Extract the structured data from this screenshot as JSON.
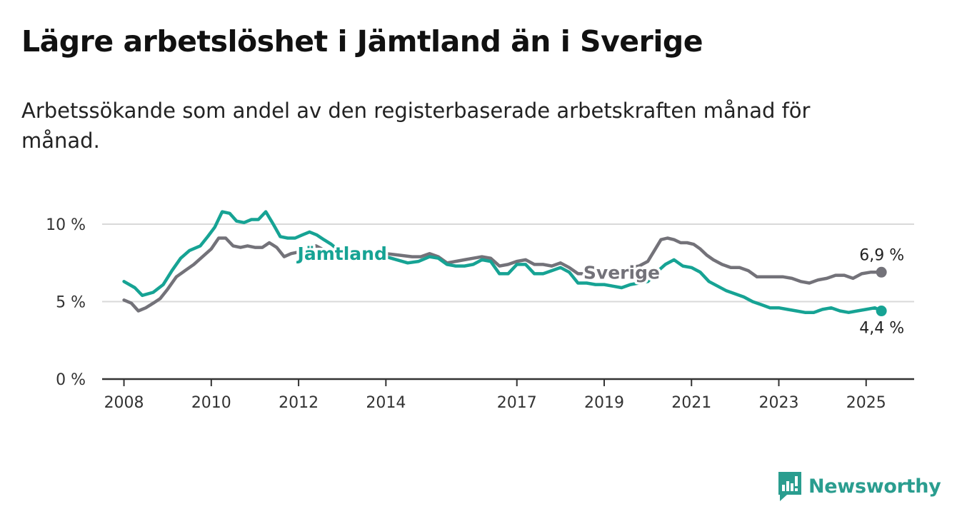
{
  "title": "Lägre arbetslöshet i Jämtland än i Sverige",
  "subtitle": "Arbetssökande som andel av den registerbaserade arbetskraften månad för månad.",
  "brand": {
    "name": "Newsworthy",
    "logo_icon": "newsworthy-bar-chart-icon"
  },
  "colors": {
    "jamtland": "#16a394",
    "sverige": "#737279",
    "grid": "#d9d9d9",
    "axis": "#333333"
  },
  "chart_data": {
    "type": "line",
    "title": "Lägre arbetslöshet i Jämtland än i Sverige",
    "subtitle": "Arbetssökande som andel av den registerbaserade arbetskraften månad för månad.",
    "xlabel": "",
    "ylabel": "",
    "xlim": [
      2007.5,
      2026.1
    ],
    "ylim": [
      0,
      10
    ],
    "x_ticks": [
      2008,
      2010,
      2012,
      2014,
      2017,
      2019,
      2021,
      2023,
      2025
    ],
    "x_tick_labels": [
      "2008",
      "2010",
      "2012",
      "2014",
      "2017",
      "2019",
      "2021",
      "2023",
      "2025"
    ],
    "y_ticks": [
      0,
      5,
      10
    ],
    "y_tick_labels": [
      "0 %",
      "5 %",
      "10 %"
    ],
    "grid": true,
    "series": [
      {
        "name": "Jämtland",
        "color": "#16a394",
        "end_label": "4,4 %",
        "points": [
          [
            2008.0,
            6.3
          ],
          [
            2008.25,
            5.9
          ],
          [
            2008.42,
            5.4
          ],
          [
            2008.67,
            5.6
          ],
          [
            2008.9,
            6.1
          ],
          [
            2009.1,
            7.0
          ],
          [
            2009.3,
            7.8
          ],
          [
            2009.5,
            8.3
          ],
          [
            2009.75,
            8.6
          ],
          [
            2009.92,
            9.2
          ],
          [
            2010.08,
            9.8
          ],
          [
            2010.25,
            10.8
          ],
          [
            2010.42,
            10.7
          ],
          [
            2010.58,
            10.2
          ],
          [
            2010.75,
            10.1
          ],
          [
            2010.92,
            10.3
          ],
          [
            2011.08,
            10.3
          ],
          [
            2011.25,
            10.8
          ],
          [
            2011.42,
            10.0
          ],
          [
            2011.58,
            9.2
          ],
          [
            2011.75,
            9.1
          ],
          [
            2011.92,
            9.1
          ],
          [
            2012.08,
            9.3
          ],
          [
            2012.25,
            9.5
          ],
          [
            2012.42,
            9.3
          ],
          [
            2012.58,
            9.0
          ],
          [
            2012.75,
            8.7
          ],
          [
            2012.92,
            8.3
          ],
          [
            2013.1,
            8.0
          ],
          [
            2013.3,
            8.0
          ],
          [
            2013.5,
            7.9
          ],
          [
            2013.75,
            7.8
          ],
          [
            2014.0,
            7.9
          ],
          [
            2014.25,
            7.7
          ],
          [
            2014.5,
            7.5
          ],
          [
            2014.75,
            7.6
          ],
          [
            2015.0,
            7.9
          ],
          [
            2015.2,
            7.8
          ],
          [
            2015.4,
            7.4
          ],
          [
            2015.6,
            7.3
          ],
          [
            2015.8,
            7.3
          ],
          [
            2016.0,
            7.4
          ],
          [
            2016.2,
            7.7
          ],
          [
            2016.4,
            7.6
          ],
          [
            2016.6,
            6.8
          ],
          [
            2016.8,
            6.8
          ],
          [
            2017.0,
            7.4
          ],
          [
            2017.2,
            7.4
          ],
          [
            2017.4,
            6.8
          ],
          [
            2017.6,
            6.8
          ],
          [
            2017.8,
            7.0
          ],
          [
            2018.0,
            7.2
          ],
          [
            2018.2,
            6.9
          ],
          [
            2018.4,
            6.2
          ],
          [
            2018.6,
            6.2
          ],
          [
            2018.8,
            6.1
          ],
          [
            2019.0,
            6.1
          ],
          [
            2019.2,
            6.0
          ],
          [
            2019.4,
            5.9
          ],
          [
            2019.6,
            6.1
          ],
          [
            2019.8,
            6.2
          ],
          [
            2020.0,
            6.3
          ],
          [
            2020.2,
            6.9
          ],
          [
            2020.4,
            7.4
          ],
          [
            2020.6,
            7.7
          ],
          [
            2020.8,
            7.3
          ],
          [
            2021.0,
            7.2
          ],
          [
            2021.2,
            6.9
          ],
          [
            2021.4,
            6.3
          ],
          [
            2021.6,
            6.0
          ],
          [
            2021.8,
            5.7
          ],
          [
            2022.0,
            5.5
          ],
          [
            2022.2,
            5.3
          ],
          [
            2022.4,
            5.0
          ],
          [
            2022.6,
            4.8
          ],
          [
            2022.8,
            4.6
          ],
          [
            2023.0,
            4.6
          ],
          [
            2023.2,
            4.5
          ],
          [
            2023.4,
            4.4
          ],
          [
            2023.6,
            4.3
          ],
          [
            2023.8,
            4.3
          ],
          [
            2024.0,
            4.5
          ],
          [
            2024.2,
            4.6
          ],
          [
            2024.4,
            4.4
          ],
          [
            2024.6,
            4.3
          ],
          [
            2024.8,
            4.4
          ],
          [
            2025.0,
            4.5
          ],
          [
            2025.2,
            4.6
          ],
          [
            2025.35,
            4.4
          ]
        ]
      },
      {
        "name": "Sverige",
        "color": "#737279",
        "end_label": "6,9 %",
        "points": [
          [
            2008.0,
            5.1
          ],
          [
            2008.17,
            4.9
          ],
          [
            2008.33,
            4.4
          ],
          [
            2008.5,
            4.6
          ],
          [
            2008.67,
            4.9
          ],
          [
            2008.83,
            5.2
          ],
          [
            2009.0,
            5.8
          ],
          [
            2009.2,
            6.6
          ],
          [
            2009.4,
            7.0
          ],
          [
            2009.6,
            7.4
          ],
          [
            2009.8,
            7.9
          ],
          [
            2010.0,
            8.4
          ],
          [
            2010.17,
            9.1
          ],
          [
            2010.33,
            9.1
          ],
          [
            2010.5,
            8.6
          ],
          [
            2010.67,
            8.5
          ],
          [
            2010.83,
            8.6
          ],
          [
            2011.0,
            8.5
          ],
          [
            2011.17,
            8.5
          ],
          [
            2011.33,
            8.8
          ],
          [
            2011.5,
            8.5
          ],
          [
            2011.67,
            7.9
          ],
          [
            2011.83,
            8.1
          ],
          [
            2012.0,
            8.2
          ],
          [
            2012.2,
            8.4
          ],
          [
            2012.4,
            8.6
          ],
          [
            2012.6,
            8.3
          ],
          [
            2012.8,
            8.1
          ],
          [
            2013.0,
            8.1
          ],
          [
            2013.3,
            8.1
          ],
          [
            2013.6,
            8.0
          ],
          [
            2014.0,
            8.1
          ],
          [
            2014.3,
            8.0
          ],
          [
            2014.6,
            7.9
          ],
          [
            2014.8,
            7.9
          ],
          [
            2015.0,
            8.1
          ],
          [
            2015.2,
            7.9
          ],
          [
            2015.4,
            7.5
          ],
          [
            2015.6,
            7.6
          ],
          [
            2015.8,
            7.7
          ],
          [
            2016.0,
            7.8
          ],
          [
            2016.2,
            7.9
          ],
          [
            2016.4,
            7.8
          ],
          [
            2016.6,
            7.3
          ],
          [
            2016.8,
            7.4
          ],
          [
            2017.0,
            7.6
          ],
          [
            2017.2,
            7.7
          ],
          [
            2017.4,
            7.4
          ],
          [
            2017.6,
            7.4
          ],
          [
            2017.8,
            7.3
          ],
          [
            2018.0,
            7.5
          ],
          [
            2018.2,
            7.2
          ],
          [
            2018.4,
            6.8
          ],
          [
            2018.6,
            6.8
          ],
          [
            2018.8,
            6.9
          ],
          [
            2019.0,
            6.8
          ],
          [
            2019.2,
            6.9
          ],
          [
            2019.4,
            7.0
          ],
          [
            2019.6,
            7.2
          ],
          [
            2019.8,
            7.3
          ],
          [
            2020.0,
            7.6
          ],
          [
            2020.15,
            8.3
          ],
          [
            2020.3,
            9.0
          ],
          [
            2020.45,
            9.1
          ],
          [
            2020.6,
            9.0
          ],
          [
            2020.75,
            8.8
          ],
          [
            2020.9,
            8.8
          ],
          [
            2021.05,
            8.7
          ],
          [
            2021.2,
            8.4
          ],
          [
            2021.35,
            8.0
          ],
          [
            2021.5,
            7.7
          ],
          [
            2021.7,
            7.4
          ],
          [
            2021.9,
            7.2
          ],
          [
            2022.1,
            7.2
          ],
          [
            2022.3,
            7.0
          ],
          [
            2022.5,
            6.6
          ],
          [
            2022.7,
            6.6
          ],
          [
            2022.9,
            6.6
          ],
          [
            2023.1,
            6.6
          ],
          [
            2023.3,
            6.5
          ],
          [
            2023.5,
            6.3
          ],
          [
            2023.7,
            6.2
          ],
          [
            2023.9,
            6.4
          ],
          [
            2024.1,
            6.5
          ],
          [
            2024.3,
            6.7
          ],
          [
            2024.5,
            6.7
          ],
          [
            2024.7,
            6.5
          ],
          [
            2024.9,
            6.8
          ],
          [
            2025.1,
            6.9
          ],
          [
            2025.35,
            6.9
          ]
        ]
      }
    ],
    "annotations": [
      {
        "text": "Jämtland",
        "series": "Jämtland",
        "x": 2013.0,
        "y": 8.1
      },
      {
        "text": "Sverige",
        "series": "Sverige",
        "x": 2019.4,
        "y": 6.9
      }
    ]
  }
}
